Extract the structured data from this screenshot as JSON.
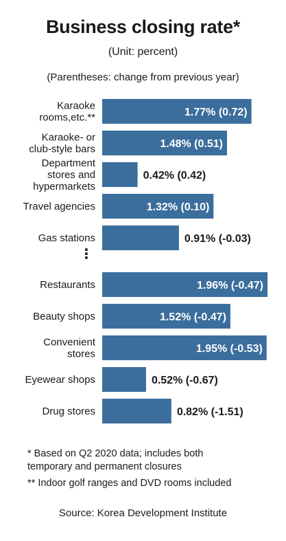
{
  "title": "Business closing rate*",
  "unit": "(Unit: percent)",
  "parenthetical_note": "(Parentheses: change from previous year)",
  "ellipsis": "⋮",
  "footnotes": [
    "* Based on Q2 2020 data; includes both temporary and permanent closures",
    "** Indoor golf ranges and DVD rooms included"
  ],
  "source": "Source: Korea Development Institute",
  "colors": {
    "bar": "#3b6e9c",
    "text": "#1a1a1a",
    "inside_label": "#ffffff"
  },
  "chart_data": {
    "type": "bar",
    "orientation": "horizontal",
    "categories": [
      "Karaoke rooms,etc.**",
      "Karaoke- or club-style bars",
      "Department stores and hypermarkets",
      "Travel agencies",
      "Gas stations",
      "Restaurants",
      "Beauty shops",
      "Convenient stores",
      "Eyewear shops",
      "Drug stores"
    ],
    "category_lines": [
      [
        "Karaoke",
        "rooms,etc.**"
      ],
      [
        "Karaoke- or",
        "club-style bars"
      ],
      [
        "Department",
        "stores and",
        "hypermarkets"
      ],
      [
        "Travel agencies"
      ],
      [
        "Gas stations"
      ],
      [
        "Restaurants"
      ],
      [
        "Beauty shops"
      ],
      [
        "Convenient",
        "stores"
      ],
      [
        "Eyewear shops"
      ],
      [
        "Drug stores"
      ]
    ],
    "values": [
      1.77,
      1.48,
      0.42,
      1.32,
      0.91,
      1.96,
      1.52,
      1.95,
      0.52,
      0.82
    ],
    "changes": [
      0.72,
      0.51,
      0.42,
      0.1,
      -0.03,
      -0.47,
      -0.47,
      -0.53,
      -0.67,
      -1.51
    ],
    "data_labels": [
      "1.77% (0.72)",
      "1.48% (0.51)",
      "0.42% (0.42)",
      "1.32% (0.10)",
      "0.91% (-0.03)",
      "1.96% (-0.47)",
      "1.52% (-0.47)",
      "1.95% (-0.53)",
      "0.52% (-0.67)",
      "0.82% (-1.51)"
    ],
    "xlim": [
      0,
      1.96
    ],
    "grid": false,
    "legend": "none"
  }
}
